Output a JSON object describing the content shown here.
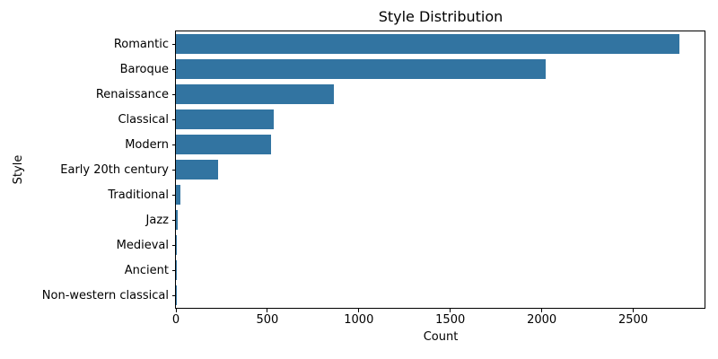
{
  "chart_data": {
    "type": "bar",
    "orientation": "horizontal",
    "title": "Style Distribution",
    "xlabel": "Count",
    "ylabel": "Style",
    "categories": [
      "Romantic",
      "Baroque",
      "Renaissance",
      "Classical",
      "Modern",
      "Early 20th century",
      "Traditional",
      "Jazz",
      "Medieval",
      "Ancient",
      "Non-western classical"
    ],
    "values": [
      2755,
      2020,
      865,
      535,
      520,
      230,
      23,
      11,
      3,
      2,
      1
    ],
    "xticks": [
      0,
      500,
      1000,
      1500,
      2000,
      2500
    ],
    "xlim": [
      0,
      2890
    ],
    "bar_color": "#3274a1",
    "axis_color": "#000000",
    "grid": false,
    "legend_position": "none"
  }
}
